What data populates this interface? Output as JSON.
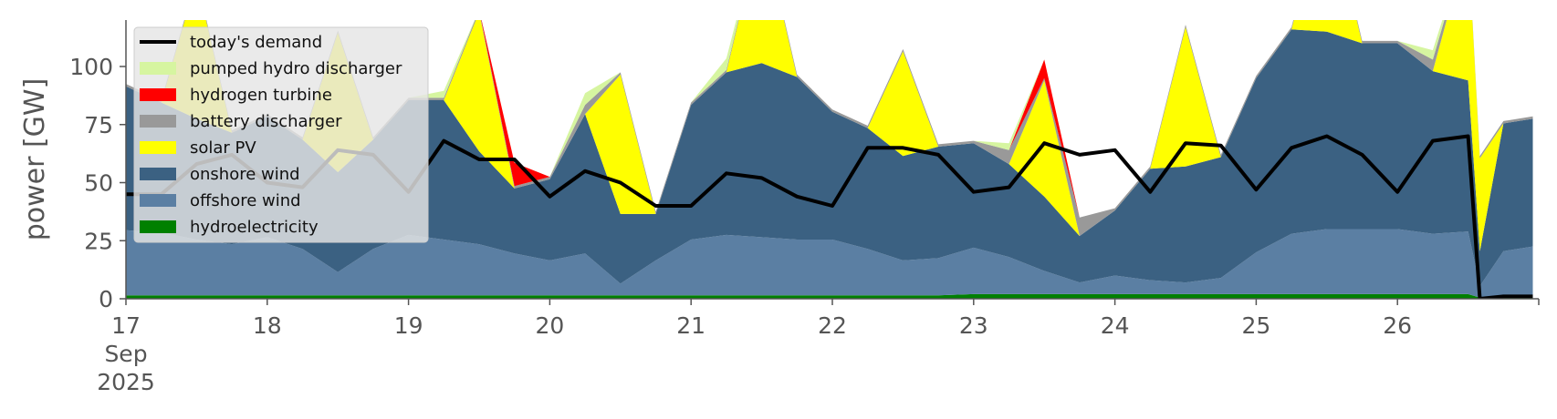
{
  "chart_data": {
    "type": "area",
    "title": "",
    "xlabel": "",
    "ylabel": "power [GW]",
    "xlim": [
      "2025-09-17",
      "2025-09-27"
    ],
    "ylim": [
      0,
      120
    ],
    "yticks": [
      0,
      25,
      50,
      75,
      100
    ],
    "xticks": [
      {
        "date": "2025-09-17",
        "label": "17",
        "label2": "Sep",
        "label3": "2025"
      },
      {
        "date": "2025-09-18",
        "label": "18"
      },
      {
        "date": "2025-09-19",
        "label": "19"
      },
      {
        "date": "2025-09-20",
        "label": "20"
      },
      {
        "date": "2025-09-21",
        "label": "21"
      },
      {
        "date": "2025-09-22",
        "label": "22"
      },
      {
        "date": "2025-09-23",
        "label": "23"
      },
      {
        "date": "2025-09-24",
        "label": "24"
      },
      {
        "date": "2025-09-25",
        "label": "25"
      },
      {
        "date": "2025-09-26",
        "label": "26"
      },
      {
        "date": "2025-09-27",
        "label": ""
      }
    ],
    "grid": false,
    "legend_position": "upper-left",
    "x": [
      "2025-09-17 00:00",
      "2025-09-17 06:00",
      "2025-09-17 12:00",
      "2025-09-17 18:00",
      "2025-09-18 00:00",
      "2025-09-18 06:00",
      "2025-09-18 12:00",
      "2025-09-18 18:00",
      "2025-09-19 00:00",
      "2025-09-19 06:00",
      "2025-09-19 12:00",
      "2025-09-19 18:00",
      "2025-09-20 00:00",
      "2025-09-20 06:00",
      "2025-09-20 12:00",
      "2025-09-20 18:00",
      "2025-09-21 00:00",
      "2025-09-21 06:00",
      "2025-09-21 12:00",
      "2025-09-21 18:00",
      "2025-09-22 00:00",
      "2025-09-22 06:00",
      "2025-09-22 12:00",
      "2025-09-22 18:00",
      "2025-09-23 00:00",
      "2025-09-23 06:00",
      "2025-09-23 12:00",
      "2025-09-23 18:00",
      "2025-09-24 00:00",
      "2025-09-24 06:00",
      "2025-09-24 12:00",
      "2025-09-24 18:00",
      "2025-09-25 00:00",
      "2025-09-25 06:00",
      "2025-09-25 12:00",
      "2025-09-25 18:00",
      "2025-09-26 00:00",
      "2025-09-26 06:00",
      "2025-09-26 12:00",
      "2025-09-26 14:00",
      "2025-09-26 18:00",
      "2025-09-26 23:00"
    ],
    "series": [
      {
        "name": "hydroelectricity",
        "color": "#008000",
        "kind": "area",
        "values": [
          1.5,
          1.5,
          1.5,
          1.5,
          1.5,
          1.5,
          1.5,
          1.5,
          1.5,
          1.5,
          1.5,
          1.5,
          1.5,
          1.5,
          1.5,
          1.5,
          1.5,
          1.5,
          1.5,
          1.5,
          1.5,
          1.5,
          1.5,
          1.5,
          2,
          2,
          2,
          2,
          2,
          2,
          2,
          2,
          2,
          2,
          2,
          2,
          2,
          2,
          2,
          0.5,
          0.5,
          0.5
        ]
      },
      {
        "name": "offshore wind",
        "color": "#5b7fa3",
        "kind": "area",
        "values": [
          28,
          27,
          24,
          22,
          25,
          20,
          10,
          20,
          26,
          24,
          22,
          18,
          15,
          18,
          5,
          15,
          24,
          26,
          25,
          24,
          24,
          20,
          15,
          16,
          20,
          16,
          10,
          5,
          8,
          6,
          5,
          7,
          18,
          26,
          28,
          28,
          28,
          26,
          27,
          5,
          20,
          22
        ]
      },
      {
        "name": "onshore wind",
        "color": "#3b6182",
        "kind": "area",
        "values": [
          62,
          56,
          52,
          48,
          52,
          47,
          43,
          47,
          58,
          60,
          40,
          28,
          35,
          60,
          30,
          20,
          58,
          70,
          75,
          70,
          55,
          52,
          45,
          48,
          45,
          40,
          32,
          20,
          28,
          48,
          50,
          52,
          75,
          88,
          85,
          80,
          80,
          70,
          65,
          15,
          55,
          55
        ]
      },
      {
        "name": "solar PV",
        "color": "#ffff00",
        "kind": "area",
        "values": [
          0,
          0,
          60,
          0,
          0,
          0,
          60,
          0,
          0,
          0,
          60,
          0,
          0,
          0,
          60,
          0,
          0,
          0,
          60,
          0,
          0,
          0,
          45,
          0,
          0,
          0,
          50,
          0,
          0,
          0,
          60,
          0,
          0,
          0,
          60,
          0,
          0,
          0,
          60,
          40,
          0,
          0
        ]
      },
      {
        "name": "battery discharger",
        "color": "#999999",
        "kind": "area",
        "values": [
          1,
          1,
          1,
          1,
          1,
          1,
          1,
          1,
          1,
          1,
          1,
          1,
          1,
          4,
          1,
          1,
          1,
          1,
          1,
          1,
          1,
          1,
          1,
          1,
          1,
          6,
          1,
          8,
          1,
          1,
          1,
          1,
          1,
          1,
          1,
          1,
          1,
          5,
          1,
          1,
          1,
          1
        ]
      },
      {
        "name": "hydrogen turbine",
        "color": "#ff0000",
        "kind": "area",
        "values": [
          0,
          0,
          0,
          0,
          0,
          0,
          0,
          0,
          0,
          0,
          0,
          10,
          0,
          0,
          0,
          0,
          0,
          0,
          0,
          0,
          0,
          0,
          0,
          0,
          0,
          0,
          8,
          0,
          0,
          0,
          0,
          0,
          0,
          0,
          0,
          0,
          0,
          0,
          0,
          0,
          0,
          0
        ]
      },
      {
        "name": "pumped hydro discharger",
        "color": "#d6f5a0",
        "kind": "area",
        "values": [
          0,
          0,
          0,
          0,
          0,
          0,
          0,
          0,
          0,
          3,
          0,
          0,
          0,
          5,
          0,
          0,
          0,
          5,
          0,
          0,
          0,
          0,
          0,
          0,
          0,
          3,
          0,
          0,
          0,
          0,
          0,
          0,
          0,
          0,
          0,
          0,
          0,
          4,
          0,
          0,
          0,
          0
        ]
      },
      {
        "name": "today's demand",
        "color": "#000000",
        "kind": "line",
        "values": [
          45,
          45,
          58,
          62,
          50,
          48,
          64,
          62,
          46,
          68,
          60,
          60,
          44,
          55,
          50,
          40,
          40,
          54,
          52,
          44,
          40,
          65,
          65,
          62,
          46,
          48,
          67,
          62,
          64,
          46,
          67,
          66,
          47,
          65,
          70,
          62,
          46,
          68,
          70,
          0,
          1,
          1
        ]
      }
    ]
  }
}
